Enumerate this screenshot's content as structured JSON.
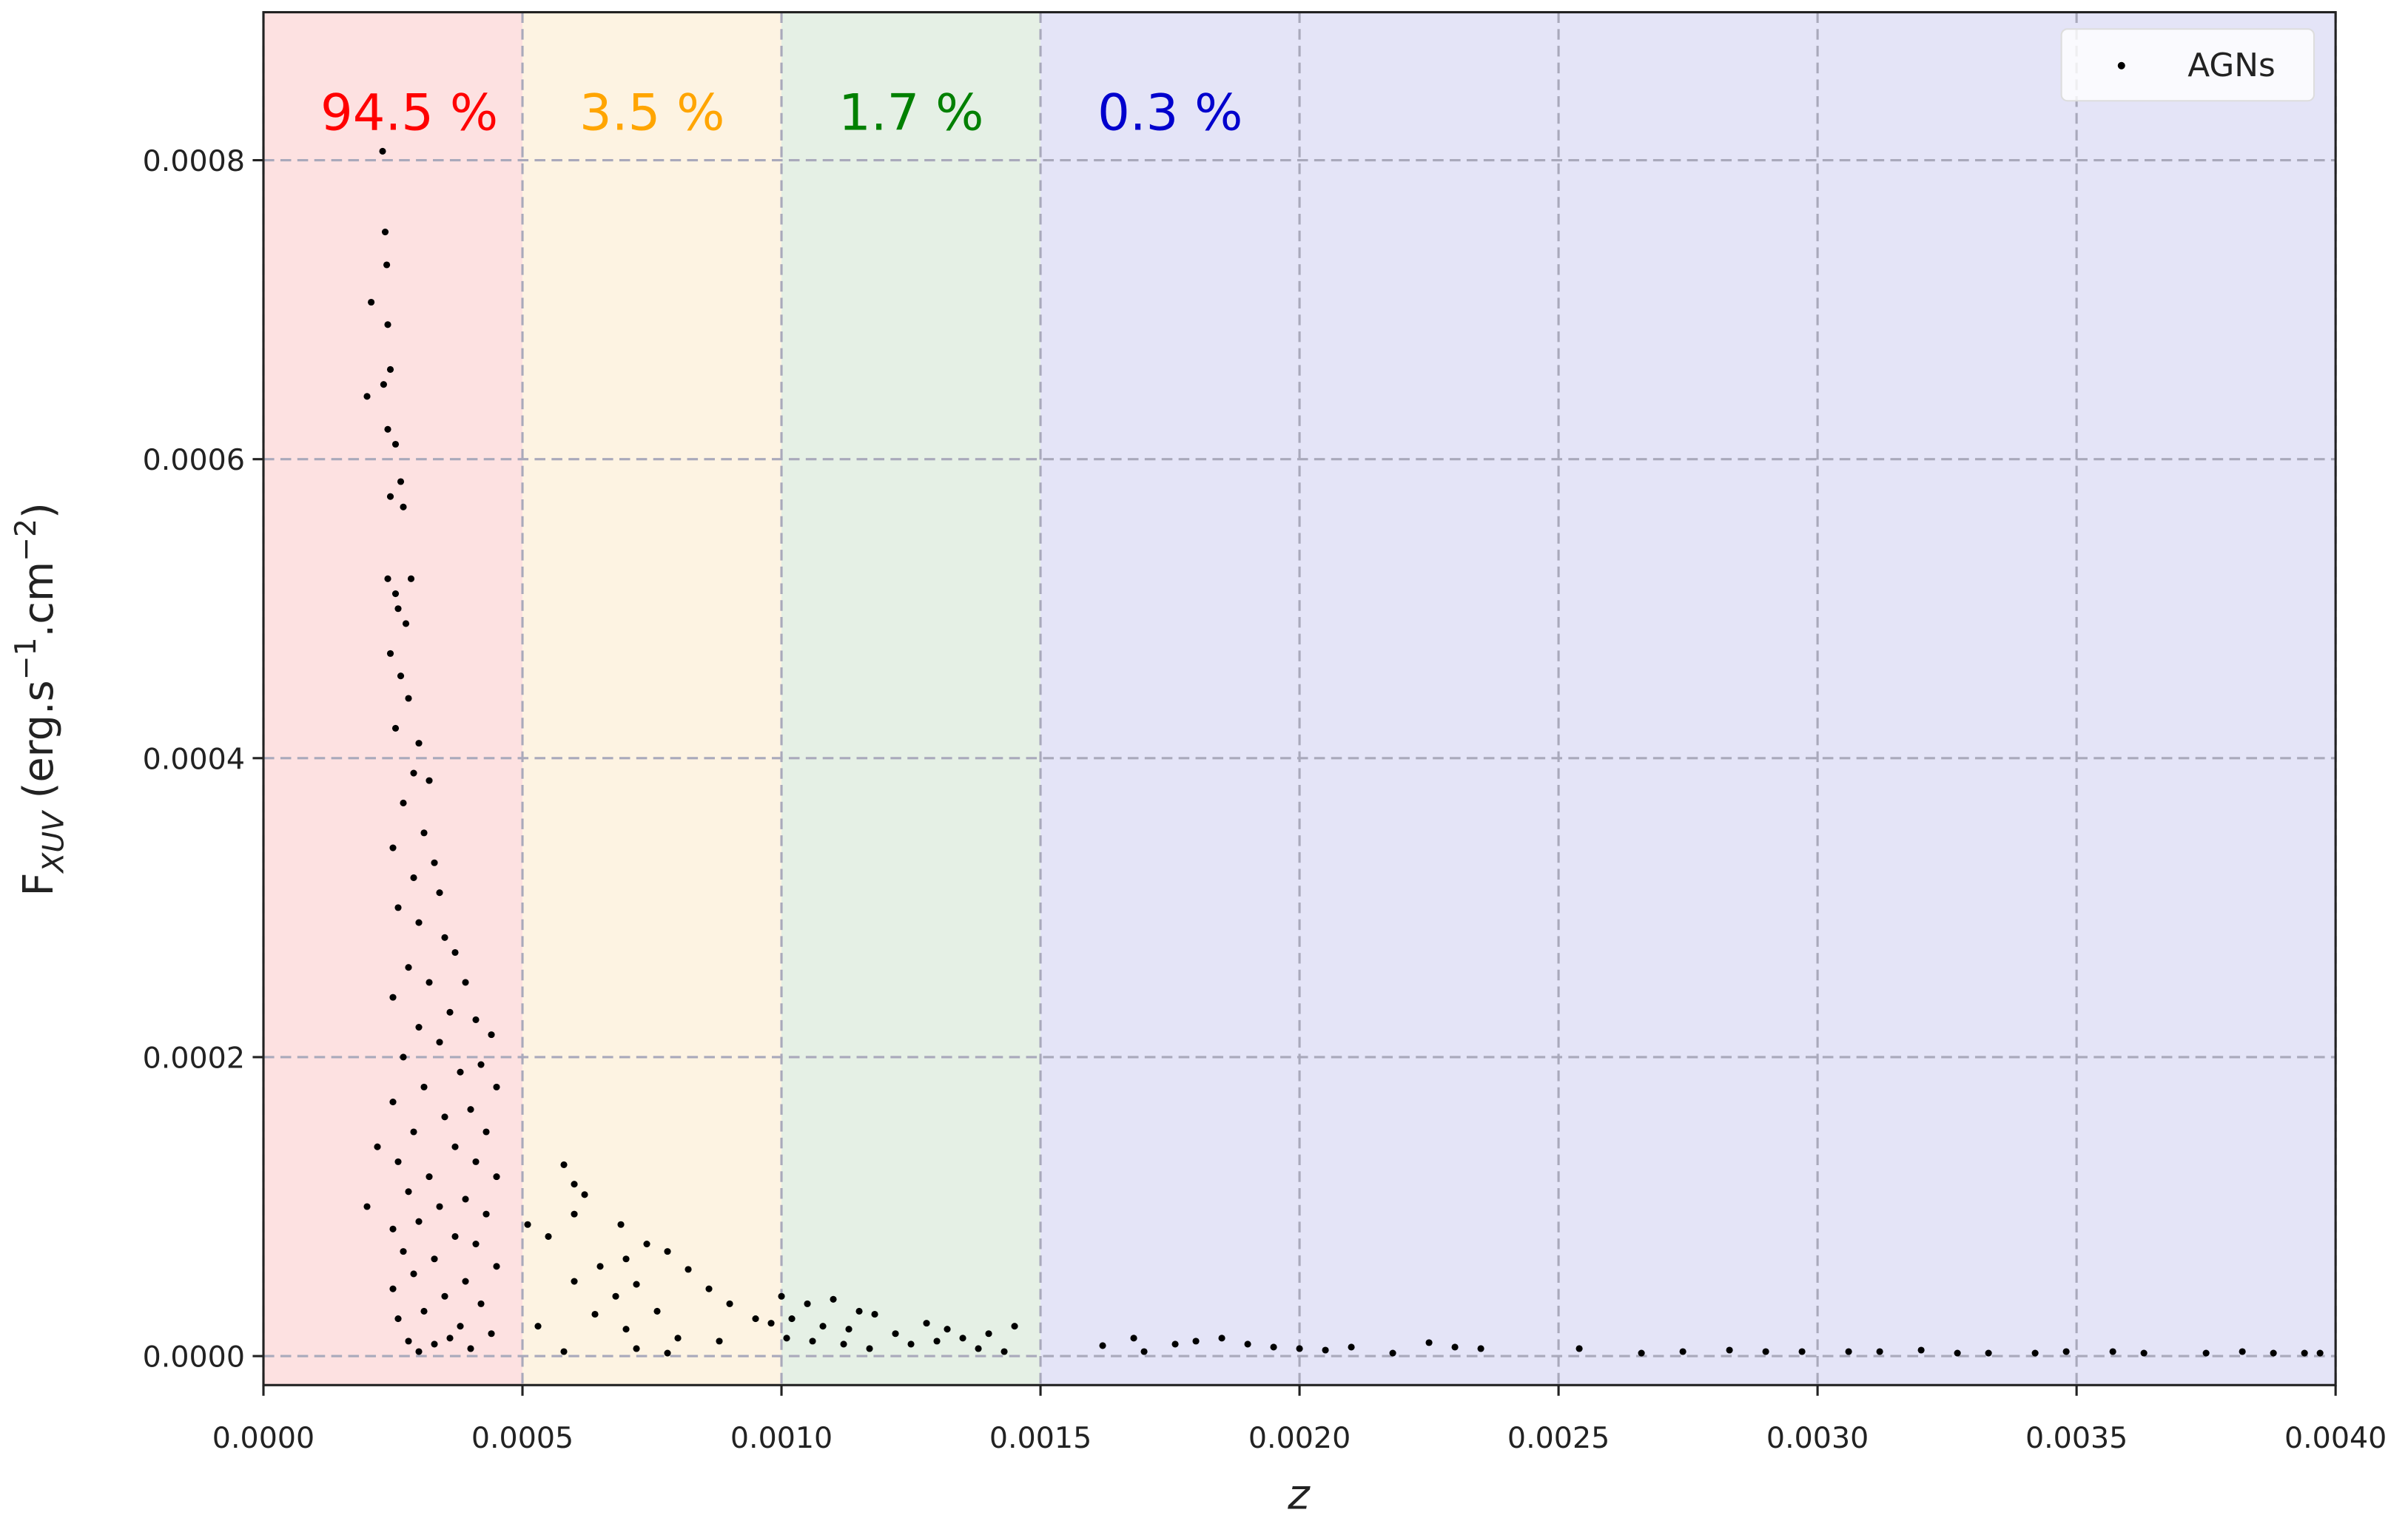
{
  "chart_data": {
    "type": "scatter",
    "xlabel": "z",
    "ylabel": [
      "F",
      "XUV",
      " (erg.s",
      "−1",
      ".cm",
      "−2",
      ")"
    ],
    "xlim": [
      0,
      0.004
    ],
    "ylim": [
      -1.94e-05,
      0.000899
    ],
    "xticks": [
      {
        "value": 0,
        "label": "0.0000"
      },
      {
        "value": 0.0005,
        "label": "0.0005"
      },
      {
        "value": 0.001,
        "label": "0.0010"
      },
      {
        "value": 0.0015,
        "label": "0.0015"
      },
      {
        "value": 0.002,
        "label": "0.0020"
      },
      {
        "value": 0.0025,
        "label": "0.0025"
      },
      {
        "value": 0.003,
        "label": "0.0030"
      },
      {
        "value": 0.0035,
        "label": "0.0035"
      },
      {
        "value": 0.004,
        "label": "0.0040"
      }
    ],
    "yticks": [
      {
        "value": 0,
        "label": "0.0000"
      },
      {
        "value": 0.0002,
        "label": "0.0002"
      },
      {
        "value": 0.0004,
        "label": "0.0004"
      },
      {
        "value": 0.0006,
        "label": "0.0006"
      },
      {
        "value": 0.0008,
        "label": "0.0008"
      }
    ],
    "grid": true,
    "legend": "upper right",
    "regions": [
      {
        "xmin": 0,
        "xmax": 0.0005,
        "color": "#fde1e1",
        "label": "94.5 %",
        "label_color": "#ff0000"
      },
      {
        "xmin": 0.0005,
        "xmax": 0.001,
        "color": "#fdf3e2",
        "label": "3.5 %",
        "label_color": "#ffa500"
      },
      {
        "xmin": 0.001,
        "xmax": 0.0015,
        "color": "#e5f0e5",
        "label": "1.7 %",
        "label_color": "#008000"
      },
      {
        "xmin": 0.0015,
        "xmax": 0.004,
        "color": "#e4e4f7",
        "label": "0.3 %",
        "label_color": "#0000cd"
      }
    ],
    "series": [
      {
        "name": "AGNs",
        "color": "#000000",
        "x": [
          0.00023,
          0.000235,
          0.000238,
          0.000208,
          0.00024,
          0.000245,
          0.000232,
          0.0002,
          0.00024,
          0.000255,
          0.000245,
          0.000265,
          0.00027,
          0.00024,
          0.000255,
          0.000285,
          0.00026,
          0.000275,
          0.000245,
          0.000265,
          0.00028,
          0.000255,
          0.0003,
          0.00029,
          0.00032,
          0.00027,
          0.00031,
          0.00025,
          0.00033,
          0.00029,
          0.00034,
          0.00026,
          0.0003,
          0.00035,
          0.00037,
          0.00028,
          0.00032,
          0.00039,
          0.00025,
          0.00036,
          0.00041,
          0.0003,
          0.00044,
          0.00034,
          0.00027,
          0.00042,
          0.00038,
          0.00031,
          0.00045,
          0.00025,
          0.0004,
          0.00035,
          0.00029,
          0.00043,
          0.00022,
          0.00037,
          0.00026,
          0.00041,
          0.00032,
          0.00045,
          0.00028,
          0.00039,
          0.00034,
          0.0002,
          0.00043,
          0.0003,
          0.00025,
          0.00037,
          0.00041,
          0.00027,
          0.00033,
          0.00045,
          0.00029,
          0.00039,
          0.00025,
          0.00035,
          0.00042,
          0.00031,
          0.00026,
          0.00038,
          0.00044,
          0.00028,
          0.00033,
          0.0004,
          0.00036,
          0.0003,
          0.00058,
          0.0006,
          0.00062,
          0.00051,
          0.0006,
          0.00069,
          0.00055,
          0.00074,
          0.00078,
          0.0007,
          0.00065,
          0.00082,
          0.0006,
          0.00072,
          0.00086,
          0.00068,
          0.0009,
          0.00076,
          0.00064,
          0.00095,
          0.00053,
          0.0007,
          0.0008,
          0.00088,
          0.00058,
          0.00072,
          0.00078,
          0.00098,
          0.001,
          0.00105,
          0.0011,
          0.00115,
          0.00102,
          0.00108,
          0.00113,
          0.00118,
          0.00101,
          0.00106,
          0.00112,
          0.00117,
          0.00122,
          0.00128,
          0.00132,
          0.00125,
          0.00135,
          0.0014,
          0.00145,
          0.00138,
          0.00143,
          0.0013,
          0.00162,
          0.00168,
          0.0017,
          0.00176,
          0.0018,
          0.00185,
          0.0019,
          0.00195,
          0.002,
          0.00205,
          0.0021,
          0.00218,
          0.00225,
          0.0023,
          0.00235,
          0.00254,
          0.00266,
          0.00274,
          0.00283,
          0.0029,
          0.00297,
          0.00306,
          0.00312,
          0.0032,
          0.00327,
          0.00333,
          0.00342,
          0.00348,
          0.00357,
          0.00363,
          0.00375,
          0.00382,
          0.00388,
          0.00394,
          0.00397
        ],
        "values": [
          0.000806,
          0.000752,
          0.00073,
          0.000705,
          0.00069,
          0.00066,
          0.00065,
          0.000642,
          0.00062,
          0.00061,
          0.000575,
          0.000585,
          0.000568,
          0.00052,
          0.00051,
          0.00052,
          0.0005,
          0.00049,
          0.00047,
          0.000455,
          0.00044,
          0.00042,
          0.00041,
          0.00039,
          0.000385,
          0.00037,
          0.00035,
          0.00034,
          0.00033,
          0.00032,
          0.00031,
          0.0003,
          0.00029,
          0.00028,
          0.00027,
          0.00026,
          0.00025,
          0.00025,
          0.00024,
          0.00023,
          0.000225,
          0.00022,
          0.000215,
          0.00021,
          0.0002,
          0.000195,
          0.00019,
          0.00018,
          0.00018,
          0.00017,
          0.000165,
          0.00016,
          0.00015,
          0.00015,
          0.00014,
          0.00014,
          0.00013,
          0.00013,
          0.00012,
          0.00012,
          0.00011,
          0.000105,
          0.0001,
          0.0001,
          9.5e-05,
          9e-05,
          8.5e-05,
          8e-05,
          7.5e-05,
          7e-05,
          6.5e-05,
          6e-05,
          5.5e-05,
          5e-05,
          4.5e-05,
          4e-05,
          3.5e-05,
          3e-05,
          2.5e-05,
          2e-05,
          1.5e-05,
          1e-05,
          8e-06,
          5e-06,
          1.2e-05,
          3e-06,
          0.000128,
          0.000115,
          0.000108,
          8.8e-05,
          9.5e-05,
          8.8e-05,
          8e-05,
          7.5e-05,
          7e-05,
          6.5e-05,
          6e-05,
          5.8e-05,
          5e-05,
          4.8e-05,
          4.5e-05,
          4e-05,
          3.5e-05,
          3e-05,
          2.8e-05,
          2.5e-05,
          2e-05,
          1.8e-05,
          1.2e-05,
          1e-05,
          3e-06,
          5e-06,
          2e-06,
          2.2e-05,
          4e-05,
          3.5e-05,
          3.8e-05,
          3e-05,
          2.5e-05,
          2e-05,
          1.8e-05,
          2.8e-05,
          1.2e-05,
          1e-05,
          8e-06,
          5e-06,
          1.5e-05,
          2.2e-05,
          1.8e-05,
          8e-06,
          1.2e-05,
          1.5e-05,
          2e-05,
          5e-06,
          3e-06,
          1e-05,
          7e-06,
          1.2e-05,
          3e-06,
          8e-06,
          1e-05,
          1.2e-05,
          8e-06,
          6e-06,
          5e-06,
          4e-06,
          6e-06,
          2e-06,
          9e-06,
          6e-06,
          5e-06,
          5e-06,
          2e-06,
          3e-06,
          4e-06,
          3e-06,
          3e-06,
          3e-06,
          3e-06,
          4e-06,
          2e-06,
          2e-06,
          2e-06,
          3e-06,
          3e-06,
          2e-06,
          2e-06,
          3e-06,
          2e-06,
          2e-06,
          2e-06
        ]
      }
    ]
  }
}
